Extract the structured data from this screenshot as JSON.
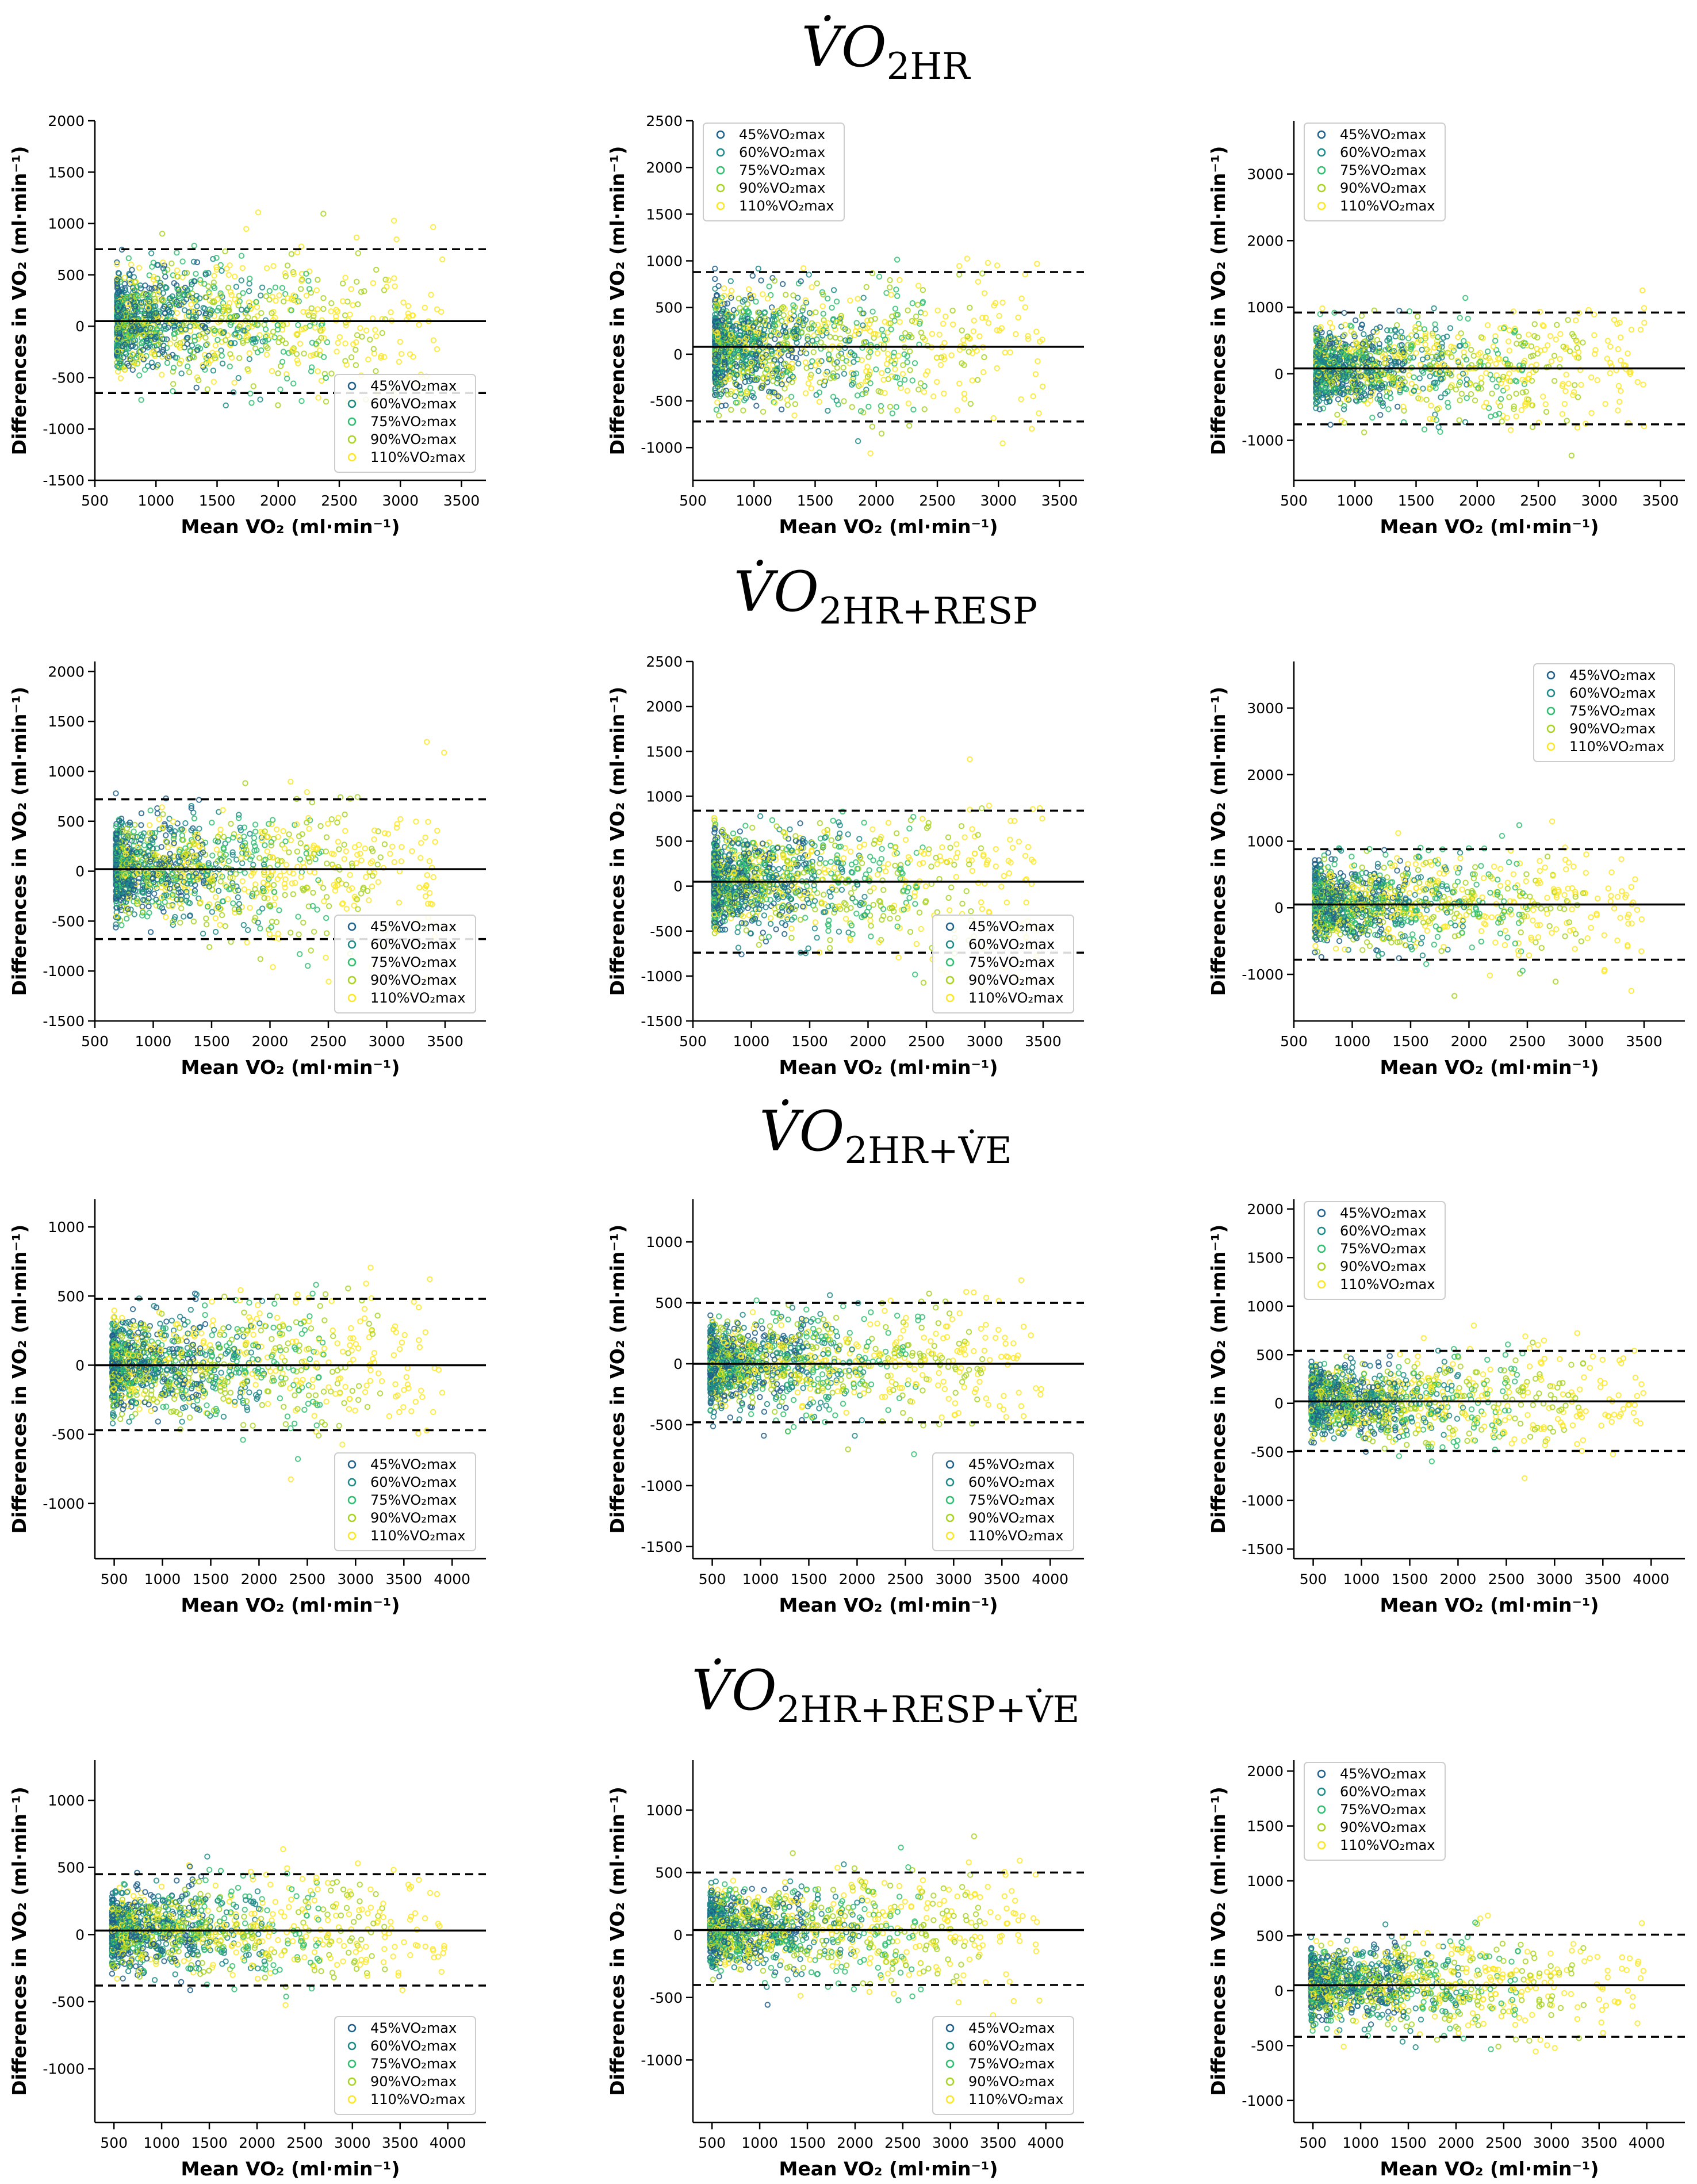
{
  "figure": {
    "rows": [
      {
        "title_main": "V̇O",
        "title_sub": "2HR"
      },
      {
        "title_main": "V̇O",
        "title_sub": "2HR+RESP"
      },
      {
        "title_main": "V̇O",
        "title_sub": "2HR+V̇E"
      },
      {
        "title_main": "V̇O",
        "title_sub": "2HR+RESP+V̇E"
      }
    ],
    "xlabel": "Mean VO₂ (ml·min⁻¹)",
    "ylabel": "Differences in VO₂ (ml·min⁻¹)",
    "legend": [
      "45%VO₂max",
      "60%VO₂max",
      "75%VO₂max",
      "90%VO₂max",
      "110%VO₂max"
    ],
    "legend_colors": [
      "#1f5f8b",
      "#1d8a8a",
      "#2fbf71",
      "#a8d420",
      "#fde725"
    ]
  },
  "chart_data": [
    {
      "type": "scatter",
      "row": 0,
      "col": 0,
      "title": "V̇O2HR",
      "legend_position": "lower-right",
      "xlim": [
        500,
        3700
      ],
      "xticks": [
        500,
        1000,
        1500,
        2000,
        2500,
        3000,
        3500
      ],
      "ylim": [
        -1500,
        2000
      ],
      "yticks": [
        -1500,
        -1000,
        -500,
        0,
        500,
        1000,
        1500,
        2000
      ],
      "mean_diff": 50,
      "loa_upper": 750,
      "loa_lower": -650
    },
    {
      "type": "scatter",
      "row": 0,
      "col": 1,
      "title": "V̇O2HR",
      "legend_position": "upper-left",
      "xlim": [
        500,
        3700
      ],
      "xticks": [
        500,
        1000,
        1500,
        2000,
        2500,
        3000,
        3500
      ],
      "ylim": [
        -1350,
        2500
      ],
      "yticks": [
        -1000,
        -500,
        0,
        500,
        1000,
        1500,
        2000,
        2500
      ],
      "mean_diff": 80,
      "loa_upper": 880,
      "loa_lower": -720
    },
    {
      "type": "scatter",
      "row": 0,
      "col": 2,
      "title": "V̇O2HR",
      "legend_position": "upper-left",
      "xlim": [
        500,
        3700
      ],
      "xticks": [
        500,
        1000,
        1500,
        2000,
        2500,
        3000,
        3500
      ],
      "ylim": [
        -1600,
        3800
      ],
      "yticks": [
        -1000,
        0,
        1000,
        2000,
        3000
      ],
      "mean_diff": 80,
      "loa_upper": 920,
      "loa_lower": -760
    },
    {
      "type": "scatter",
      "row": 1,
      "col": 0,
      "title": "V̇O2HR+RESP",
      "legend_position": "lower-right",
      "xlim": [
        500,
        3850
      ],
      "xticks": [
        500,
        1000,
        1500,
        2000,
        2500,
        3000,
        3500
      ],
      "ylim": [
        -1500,
        2100
      ],
      "yticks": [
        -1500,
        -1000,
        -500,
        0,
        500,
        1000,
        1500,
        2000
      ],
      "mean_diff": 20,
      "loa_upper": 720,
      "loa_lower": -680
    },
    {
      "type": "scatter",
      "row": 1,
      "col": 1,
      "title": "V̇O2HR+RESP",
      "legend_position": "lower-right",
      "xlim": [
        500,
        3850
      ],
      "xticks": [
        500,
        1000,
        1500,
        2000,
        2500,
        3000,
        3500
      ],
      "ylim": [
        -1500,
        2500
      ],
      "yticks": [
        -1500,
        -1000,
        -500,
        0,
        500,
        1000,
        1500,
        2000,
        2500
      ],
      "mean_diff": 50,
      "loa_upper": 840,
      "loa_lower": -740
    },
    {
      "type": "scatter",
      "row": 1,
      "col": 2,
      "title": "V̇O2HR+RESP",
      "legend_position": "upper-right",
      "xlim": [
        500,
        3850
      ],
      "xticks": [
        500,
        1000,
        1500,
        2000,
        2500,
        3000,
        3500
      ],
      "ylim": [
        -1700,
        3700
      ],
      "yticks": [
        -1000,
        0,
        1000,
        2000,
        3000
      ],
      "mean_diff": 50,
      "loa_upper": 880,
      "loa_lower": -780
    },
    {
      "type": "scatter",
      "row": 2,
      "col": 0,
      "title": "V̇O2HR+V̇E",
      "legend_position": "lower-right",
      "xlim": [
        300,
        4350
      ],
      "xticks": [
        500,
        1000,
        1500,
        2000,
        2500,
        3000,
        3500,
        4000
      ],
      "ylim": [
        -1400,
        1200
      ],
      "yticks": [
        -1000,
        -500,
        0,
        500,
        1000
      ],
      "mean_diff": 0,
      "loa_upper": 480,
      "loa_lower": -470
    },
    {
      "type": "scatter",
      "row": 2,
      "col": 1,
      "title": "V̇O2HR+V̇E",
      "legend_position": "lower-right",
      "xlim": [
        300,
        4350
      ],
      "xticks": [
        500,
        1000,
        1500,
        2000,
        2500,
        3000,
        3500,
        4000
      ],
      "ylim": [
        -1600,
        1350
      ],
      "yticks": [
        -1500,
        -1000,
        -500,
        0,
        500,
        1000
      ],
      "mean_diff": 0,
      "loa_upper": 500,
      "loa_lower": -480
    },
    {
      "type": "scatter",
      "row": 2,
      "col": 2,
      "title": "V̇O2HR+V̇E",
      "legend_position": "upper-left",
      "xlim": [
        300,
        4350
      ],
      "xticks": [
        500,
        1000,
        1500,
        2000,
        2500,
        3000,
        3500,
        4000
      ],
      "ylim": [
        -1600,
        2100
      ],
      "yticks": [
        -1500,
        -1000,
        -500,
        0,
        500,
        1000,
        1500,
        2000
      ],
      "mean_diff": 20,
      "loa_upper": 540,
      "loa_lower": -490
    },
    {
      "type": "scatter",
      "row": 3,
      "col": 0,
      "title": "V̇O2HR+RESP+V̇E",
      "legend_position": "lower-right",
      "xlim": [
        300,
        4400
      ],
      "xticks": [
        500,
        1000,
        1500,
        2000,
        2500,
        3000,
        3500,
        4000
      ],
      "ylim": [
        -1400,
        1300
      ],
      "yticks": [
        -1000,
        -500,
        0,
        500,
        1000
      ],
      "mean_diff": 30,
      "loa_upper": 450,
      "loa_lower": -380
    },
    {
      "type": "scatter",
      "row": 3,
      "col": 1,
      "title": "V̇O2HR+RESP+V̇E",
      "legend_position": "lower-right",
      "xlim": [
        300,
        4400
      ],
      "xticks": [
        500,
        1000,
        1500,
        2000,
        2500,
        3000,
        3500,
        4000
      ],
      "ylim": [
        -1500,
        1400
      ],
      "yticks": [
        -1000,
        -500,
        0,
        500,
        1000
      ],
      "mean_diff": 40,
      "loa_upper": 500,
      "loa_lower": -400
    },
    {
      "type": "scatter",
      "row": 3,
      "col": 2,
      "title": "V̇O2HR+RESP+V̇E",
      "legend_position": "upper-left",
      "xlim": [
        300,
        4400
      ],
      "xticks": [
        500,
        1000,
        1500,
        2000,
        2500,
        3000,
        3500,
        4000
      ],
      "ylim": [
        -1200,
        2100
      ],
      "yticks": [
        -1000,
        -500,
        0,
        500,
        1000,
        1500,
        2000
      ],
      "mean_diff": 50,
      "loa_upper": 510,
      "loa_lower": -420
    }
  ]
}
